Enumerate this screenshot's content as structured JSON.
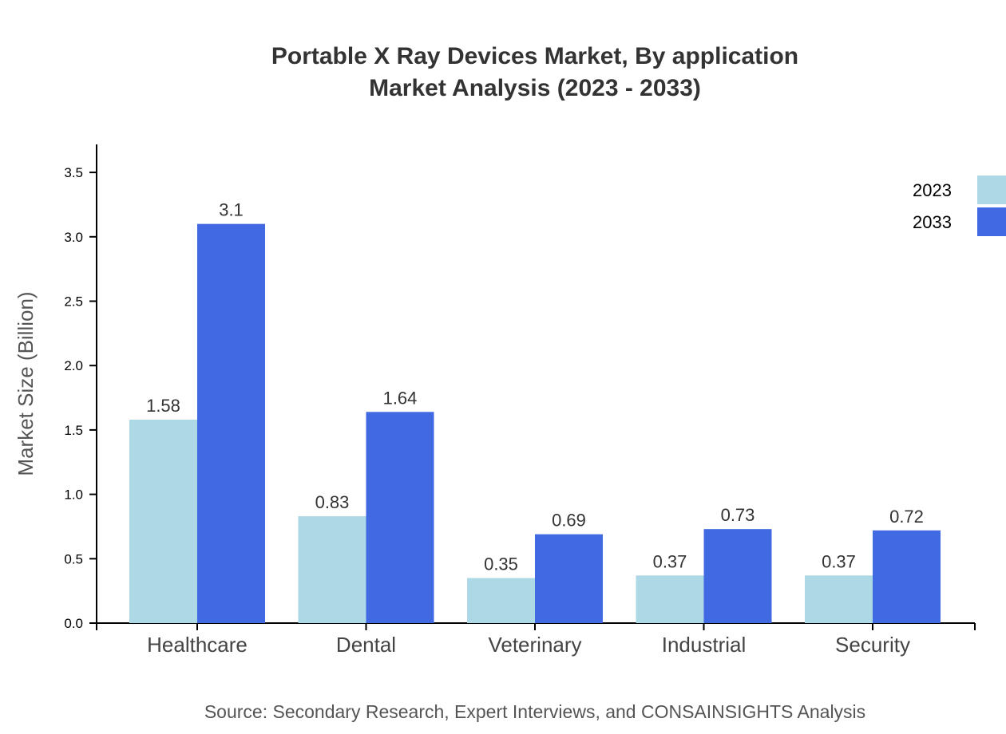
{
  "chart_data": {
    "type": "bar",
    "title": "Portable X Ray Devices Market, By application",
    "subtitle": "Market Analysis (2023 - 2033)",
    "ylabel": "Market Size (Billion)",
    "xlabel": "",
    "ylim": [
      0,
      3.7
    ],
    "yticks": [
      "0.0",
      "0.5",
      "1.0",
      "1.5",
      "2.0",
      "2.5",
      "3.0",
      "3.5"
    ],
    "categories": [
      "Healthcare",
      "Dental",
      "Veterinary",
      "Industrial",
      "Security"
    ],
    "series": [
      {
        "name": "2023",
        "color": "#ADD8E6",
        "values": [
          1.58,
          0.83,
          0.35,
          0.37,
          0.37
        ]
      },
      {
        "name": "2033",
        "color": "#4169E1",
        "values": [
          3.1,
          1.64,
          0.69,
          0.73,
          0.72
        ]
      }
    ],
    "legend_position": "top-right",
    "grid": false,
    "source": "Source: Secondary Research, Expert Interviews, and CONSAINSIGHTS Analysis"
  }
}
